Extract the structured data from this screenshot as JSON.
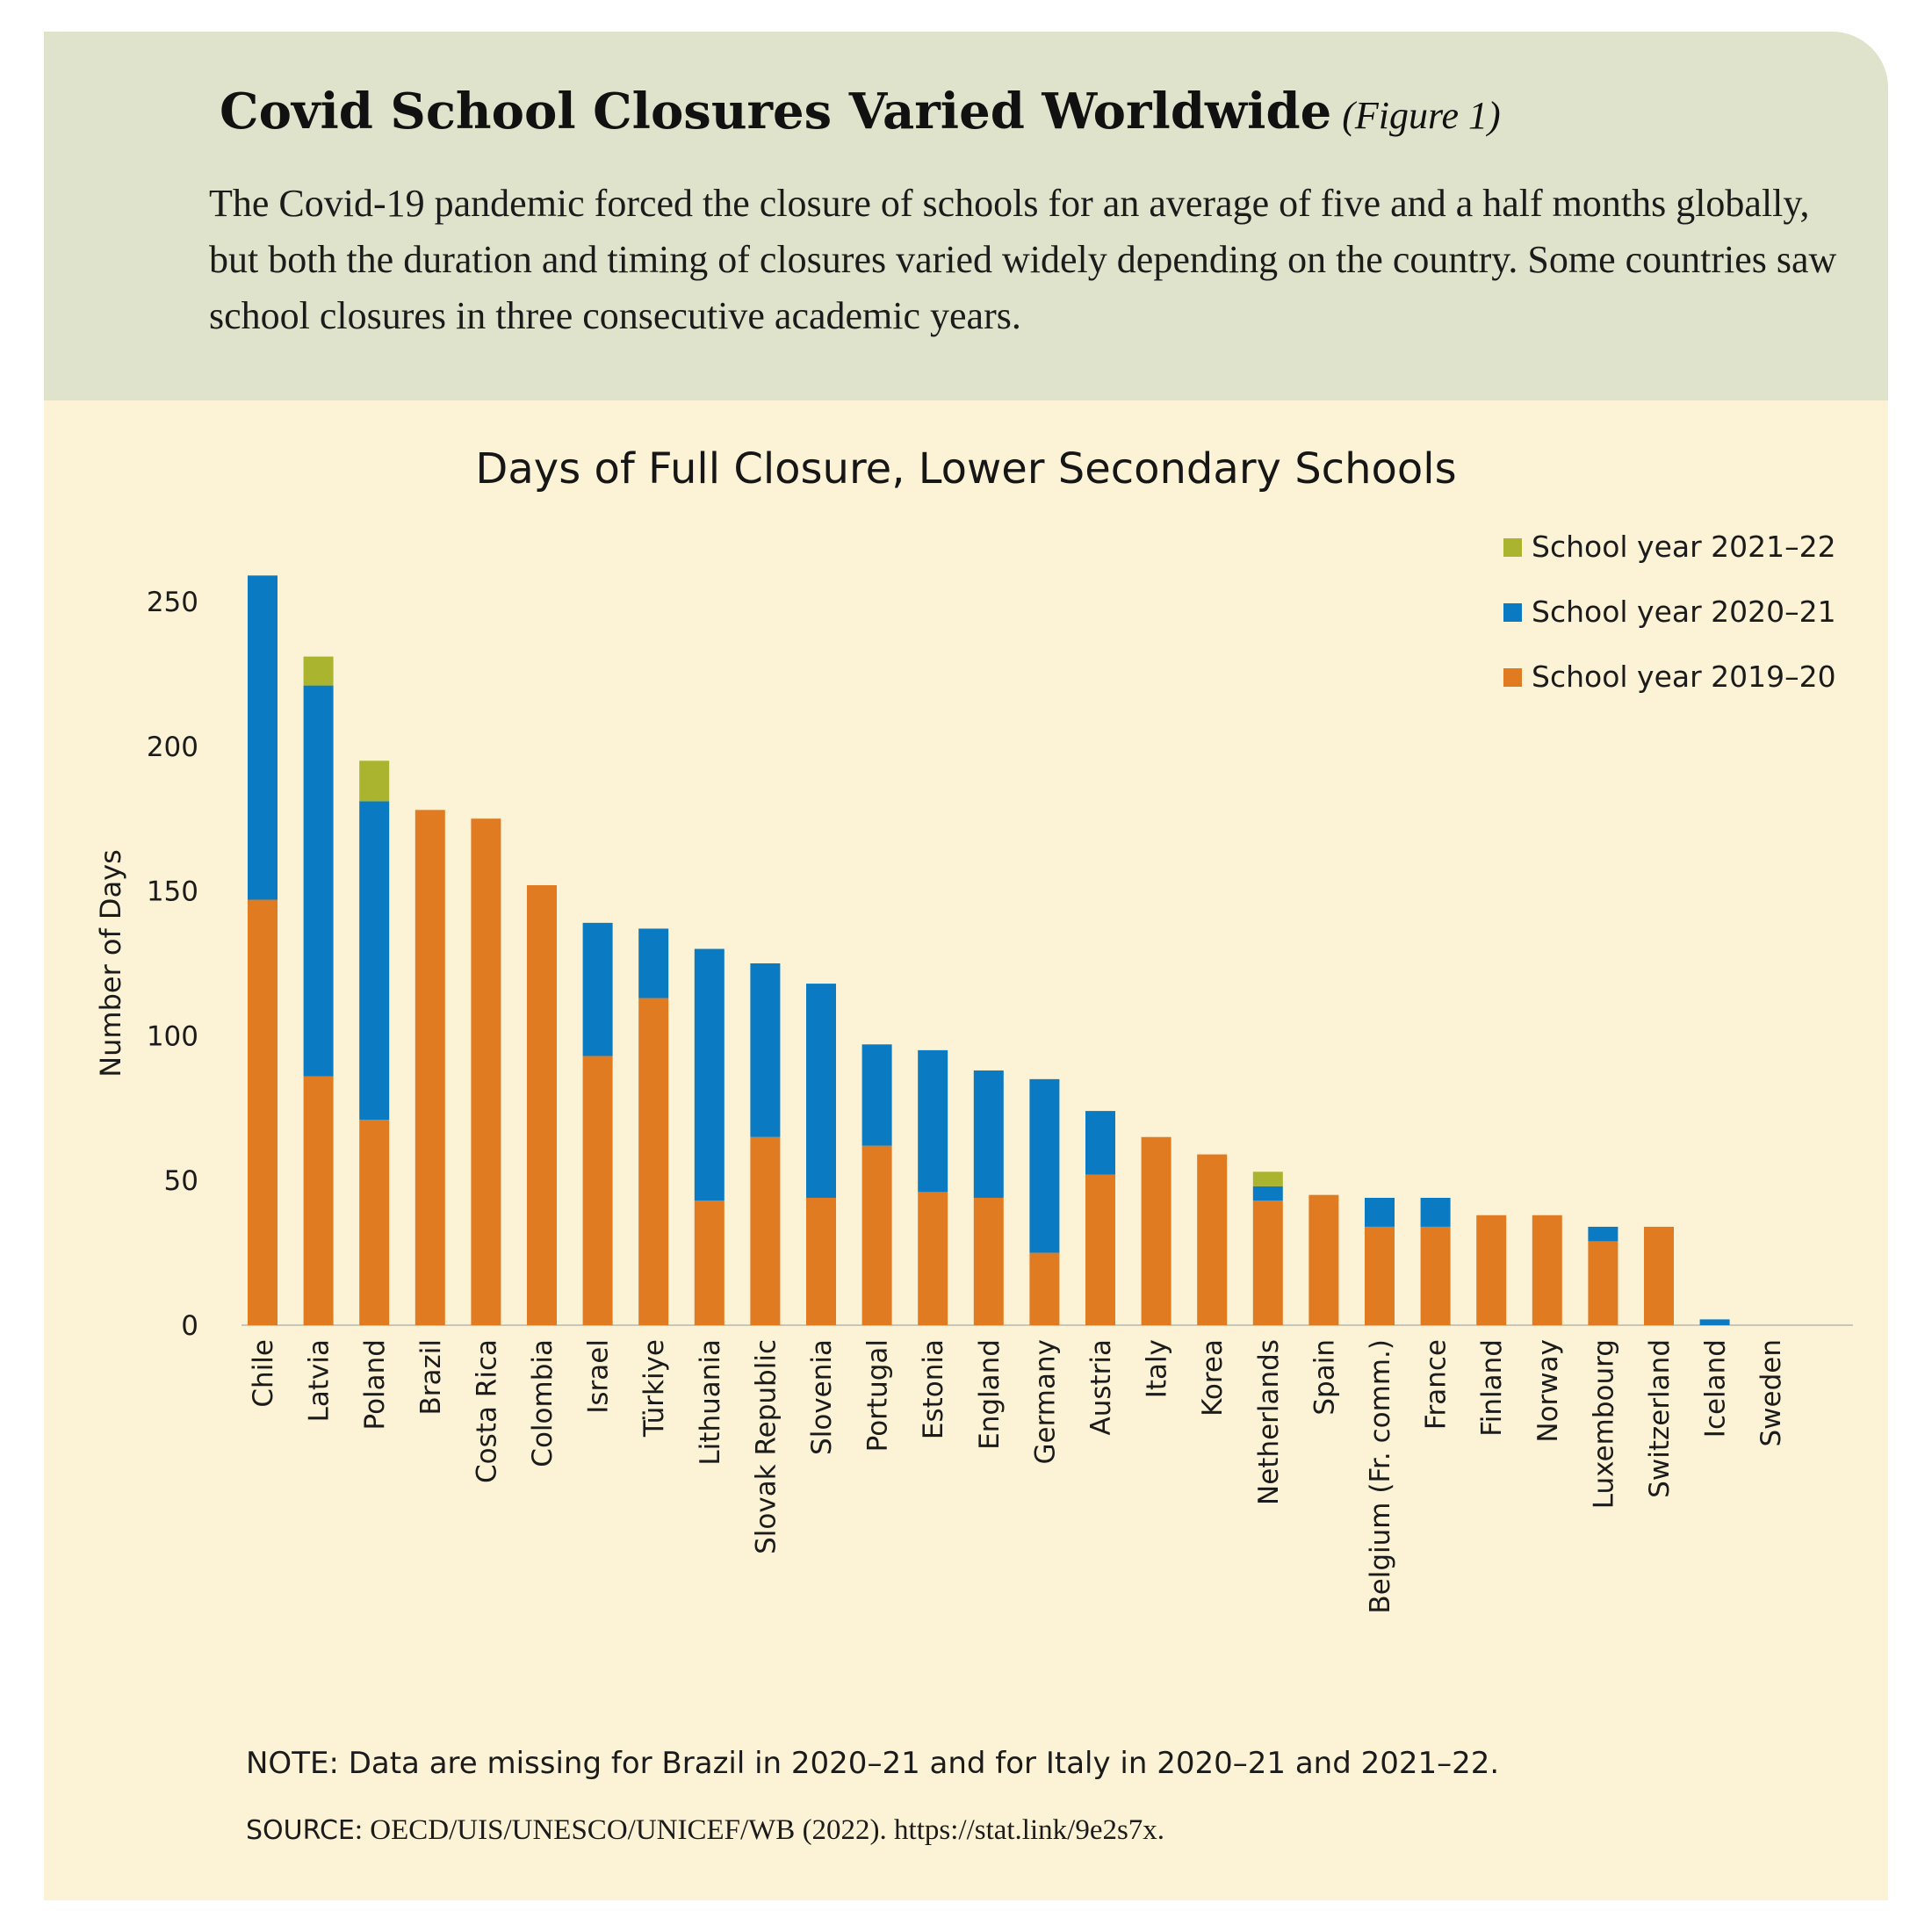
{
  "header": {
    "title": "Covid School Closures Varied Worldwide",
    "figure_label": "(Figure 1)",
    "intro": "The Covid-19 pandemic forced the closure of schools for an average of five and a half months globally, but both the duration and timing of closures varied widely depending on the country. Some countries saw school closures in three consecutive academic years."
  },
  "footer": {
    "note": "NOTE: Data are missing for Brazil in 2020–21 and for Italy in 2020–21 and 2021–22.",
    "source_label": "SOURCE",
    "source_text": ": OECD/UIS/UNESCO/UNICEF/WB (2022). https://stat.link/9e2s7x."
  },
  "chart_data": {
    "type": "bar",
    "stacked": true,
    "title": "Days of Full Closure, Lower Secondary Schools",
    "ylabel": "Number of Days",
    "xlabel": "",
    "ylim": [
      0,
      250
    ],
    "yticks": [
      0,
      50,
      100,
      150,
      200,
      250
    ],
    "grid": false,
    "legend_position": "top-right",
    "categories": [
      "Chile",
      "Latvia",
      "Poland",
      "Brazil",
      "Costa Rica",
      "Colombia",
      "Israel",
      "Türkiye",
      "Lithuania",
      "Slovak Republic",
      "Slovenia",
      "Portugal",
      "Estonia",
      "England",
      "Germany",
      "Austria",
      "Italy",
      "Korea",
      "Netherlands",
      "Spain",
      "Belgium (Fr. comm.)",
      "France",
      "Finland",
      "Norway",
      "Luxembourg",
      "Switzerland",
      "Iceland",
      "Sweden"
    ],
    "series": [
      {
        "name": "School year 2019–20",
        "color": "#e07b22",
        "values": [
          147,
          86,
          71,
          178,
          175,
          152,
          93,
          113,
          43,
          65,
          44,
          62,
          46,
          44,
          25,
          52,
          65,
          59,
          43,
          45,
          34,
          34,
          38,
          38,
          29,
          34,
          0,
          0
        ]
      },
      {
        "name": "School year 2020–21",
        "color": "#0a7bc2",
        "values": [
          112,
          135,
          110,
          0,
          0,
          0,
          46,
          24,
          87,
          60,
          74,
          35,
          49,
          44,
          60,
          22,
          0,
          0,
          5,
          0,
          10,
          10,
          0,
          0,
          5,
          0,
          2,
          0
        ]
      },
      {
        "name": "School year 2021–22",
        "color": "#aab42f",
        "values": [
          0,
          10,
          14,
          0,
          0,
          0,
          0,
          0,
          0,
          0,
          0,
          0,
          0,
          0,
          0,
          0,
          0,
          0,
          5,
          0,
          0,
          0,
          0,
          0,
          0,
          0,
          0,
          0
        ]
      }
    ],
    "legend_order": [
      "School year 2021–22",
      "School year 2020–21",
      "School year 2019–20"
    ]
  }
}
